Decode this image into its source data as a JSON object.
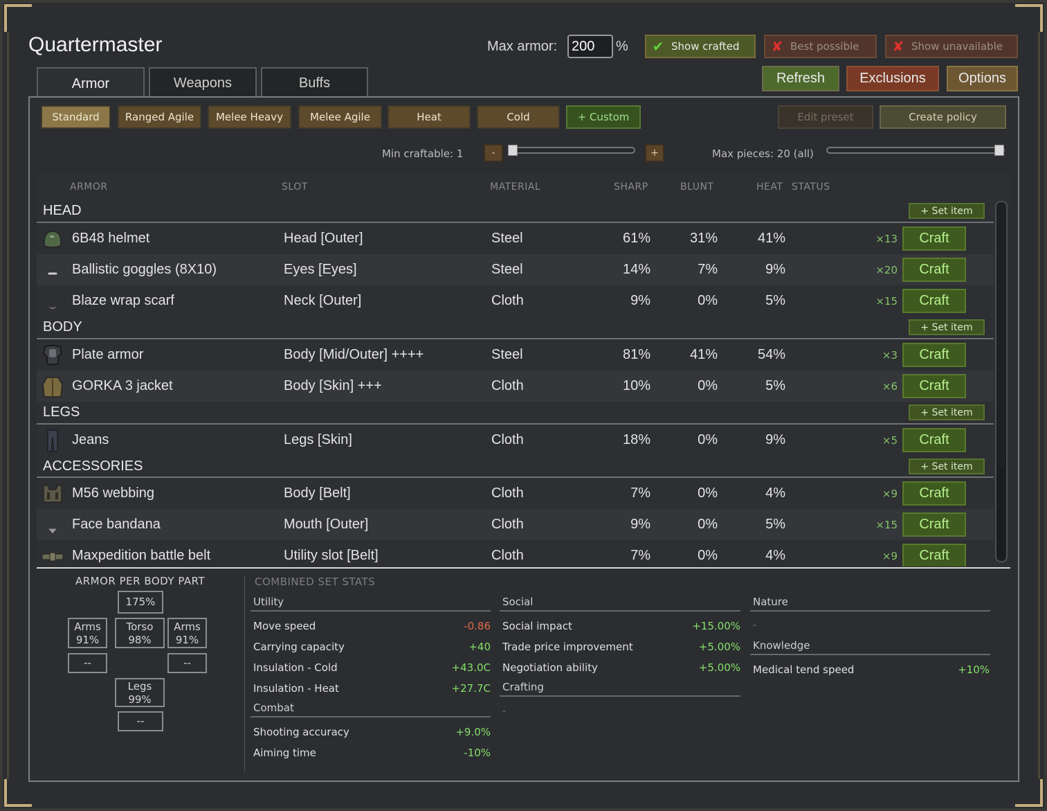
{
  "title": "Quartermaster",
  "max_armor": {
    "label": "Max armor:",
    "value": "200",
    "suffix": "%"
  },
  "toggles": {
    "show_crafted": "Show crafted",
    "best_possible": "Best possible",
    "show_unavailable": "Show unavailable"
  },
  "tabs": [
    "Armor",
    "Weapons",
    "Buffs"
  ],
  "buttons": {
    "refresh": "Refresh",
    "exclusions": "Exclusions",
    "options": "Options"
  },
  "presets": [
    "Standard",
    "Ranged Agile",
    "Melee Heavy",
    "Melee Agile",
    "Heat",
    "Cold",
    "+ Custom"
  ],
  "preset_actions": {
    "edit": "Edit preset",
    "create": "Create policy"
  },
  "min_craftable": {
    "label": "Min craftable: 1",
    "minus": "-",
    "plus": "+",
    "value": 1
  },
  "max_pieces": {
    "label": "Max pieces: 20 (all)",
    "value": 20
  },
  "columns": {
    "armor": "ARMOR",
    "slot": "SLOT",
    "material": "MATERIAL",
    "sharp": "SHARP",
    "blunt": "BLUNT",
    "heat": "HEAT",
    "status": "STATUS"
  },
  "set_item_label": "+ Set item",
  "craft_label": "Craft",
  "groups": {
    "head": {
      "label": "HEAD",
      "items": [
        {
          "name": "6B48 helmet",
          "slot": "Head [Outer]",
          "material": "Steel",
          "sharp": "61%",
          "blunt": "31%",
          "heat": "41%",
          "count": "×13",
          "icon": "helmet-icon"
        },
        {
          "name": "Ballistic goggles (8X10)",
          "slot": "Eyes [Eyes]",
          "material": "Steel",
          "sharp": "14%",
          "blunt": "7%",
          "heat": "9%",
          "count": "×20",
          "icon": "goggles-icon"
        },
        {
          "name": "Blaze wrap scarf",
          "slot": "Neck [Outer]",
          "material": "Cloth",
          "sharp": "9%",
          "blunt": "0%",
          "heat": "5%",
          "count": "×15",
          "icon": "scarf-icon"
        }
      ]
    },
    "body": {
      "label": "BODY",
      "items": [
        {
          "name": "Plate armor",
          "slot": "Body [Mid/Outer] ++++",
          "material": "Steel",
          "sharp": "81%",
          "blunt": "41%",
          "heat": "54%",
          "count": "×3",
          "icon": "plate-armor-icon"
        },
        {
          "name": "GORKA 3 jacket",
          "slot": "Body [Skin] +++",
          "material": "Cloth",
          "sharp": "10%",
          "blunt": "0%",
          "heat": "5%",
          "count": "×6",
          "icon": "jacket-icon"
        }
      ]
    },
    "legs": {
      "label": "LEGS",
      "items": [
        {
          "name": "Jeans",
          "slot": "Legs [Skin]",
          "material": "Cloth",
          "sharp": "18%",
          "blunt": "0%",
          "heat": "9%",
          "count": "×5",
          "icon": "jeans-icon"
        }
      ]
    },
    "accessories": {
      "label": "ACCESSORIES",
      "items": [
        {
          "name": "M56 webbing",
          "slot": "Body [Belt]",
          "material": "Cloth",
          "sharp": "7%",
          "blunt": "0%",
          "heat": "4%",
          "count": "×9",
          "icon": "webbing-icon"
        },
        {
          "name": "Face bandana",
          "slot": "Mouth [Outer]",
          "material": "Cloth",
          "sharp": "9%",
          "blunt": "0%",
          "heat": "5%",
          "count": "×15",
          "icon": "bandana-icon"
        },
        {
          "name": "Maxpedition battle belt",
          "slot": "Utility slot [Belt]",
          "material": "Cloth",
          "sharp": "7%",
          "blunt": "0%",
          "heat": "4%",
          "count": "×9",
          "icon": "belt-icon"
        }
      ]
    }
  },
  "armor_per_body_part": {
    "title": "ARMOR PER BODY PART",
    "head": "175%",
    "arms_left": {
      "label": "Arms",
      "value": "91%"
    },
    "torso": {
      "label": "Torso",
      "value": "98%"
    },
    "arms_right": {
      "label": "Arms",
      "value": "91%"
    },
    "hands_left": "--",
    "hands_right": "--",
    "legs": {
      "label": "Legs",
      "value": "99%"
    },
    "feet": "--"
  },
  "combined": {
    "title": "COMBINED SET STATS",
    "utility": {
      "label": "Utility",
      "stats": [
        {
          "name": "Move speed",
          "value": "-0.86"
        },
        {
          "name": "Carrying capacity",
          "value": "+40"
        },
        {
          "name": "Insulation - Cold",
          "value": "+43.0C"
        },
        {
          "name": "Insulation - Heat",
          "value": "+27.7C"
        }
      ]
    },
    "combat": {
      "label": "Combat",
      "stats": [
        {
          "name": "Shooting accuracy",
          "value": "+9.0%"
        },
        {
          "name": "Aiming time",
          "value": "-10%"
        }
      ]
    },
    "social": {
      "label": "Social",
      "stats": [
        {
          "name": "Social impact",
          "value": "+15.00%"
        },
        {
          "name": "Trade price improvement",
          "value": "+5.00%"
        },
        {
          "name": "Negotiation ability",
          "value": "+5.00%"
        }
      ]
    },
    "crafting": {
      "label": "Crafting",
      "empty": "-"
    },
    "nature": {
      "label": "Nature",
      "empty": "-"
    },
    "knowledge": {
      "label": "Knowledge",
      "stats": [
        {
          "name": "Medical tend speed",
          "value": "+10%"
        }
      ]
    }
  },
  "colors": {
    "positive": "#86e06b",
    "negative": "#e06a4a",
    "craft_green": "#3e5a1f",
    "gold": "#c7ad7e"
  }
}
